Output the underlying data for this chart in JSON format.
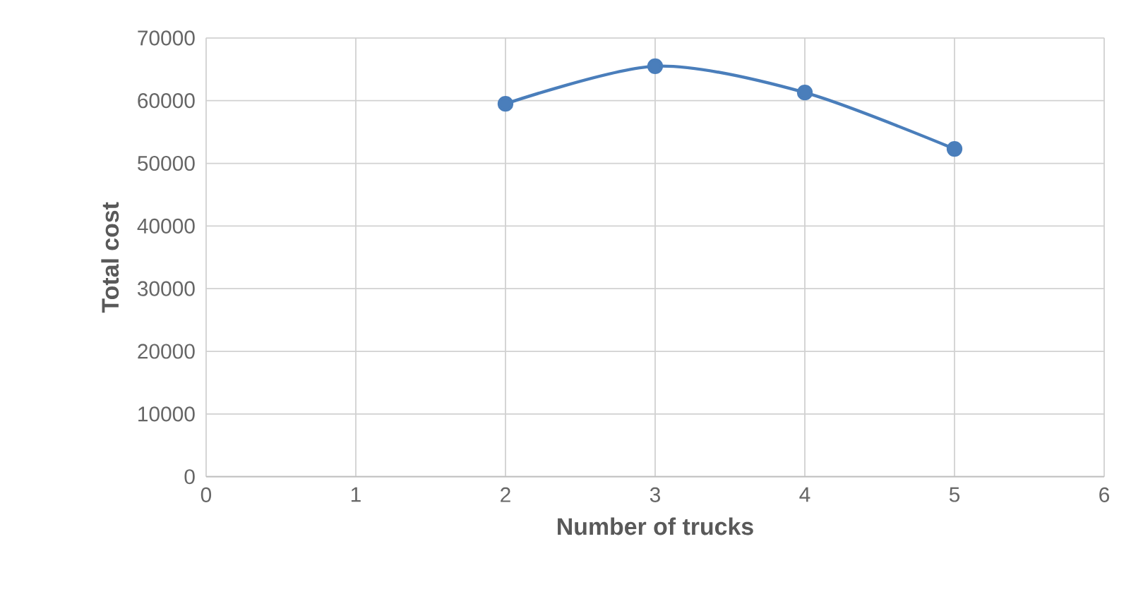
{
  "chart_data": {
    "type": "line",
    "xlabel": "Number of trucks",
    "ylabel": "Total cost",
    "x": [
      2,
      3,
      4,
      5
    ],
    "series": [
      {
        "color": "#4a7ebb",
        "values": [
          59500,
          65500,
          61300,
          52300
        ]
      }
    ],
    "xlim": [
      0,
      6
    ],
    "xticks": [
      0,
      1,
      2,
      3,
      4,
      5,
      6
    ],
    "ylim": [
      0,
      70000
    ],
    "yticks": [
      0,
      10000,
      20000,
      30000,
      40000,
      50000,
      60000,
      70000
    ],
    "grid": true,
    "marker": "circle",
    "line_style": "solid"
  }
}
